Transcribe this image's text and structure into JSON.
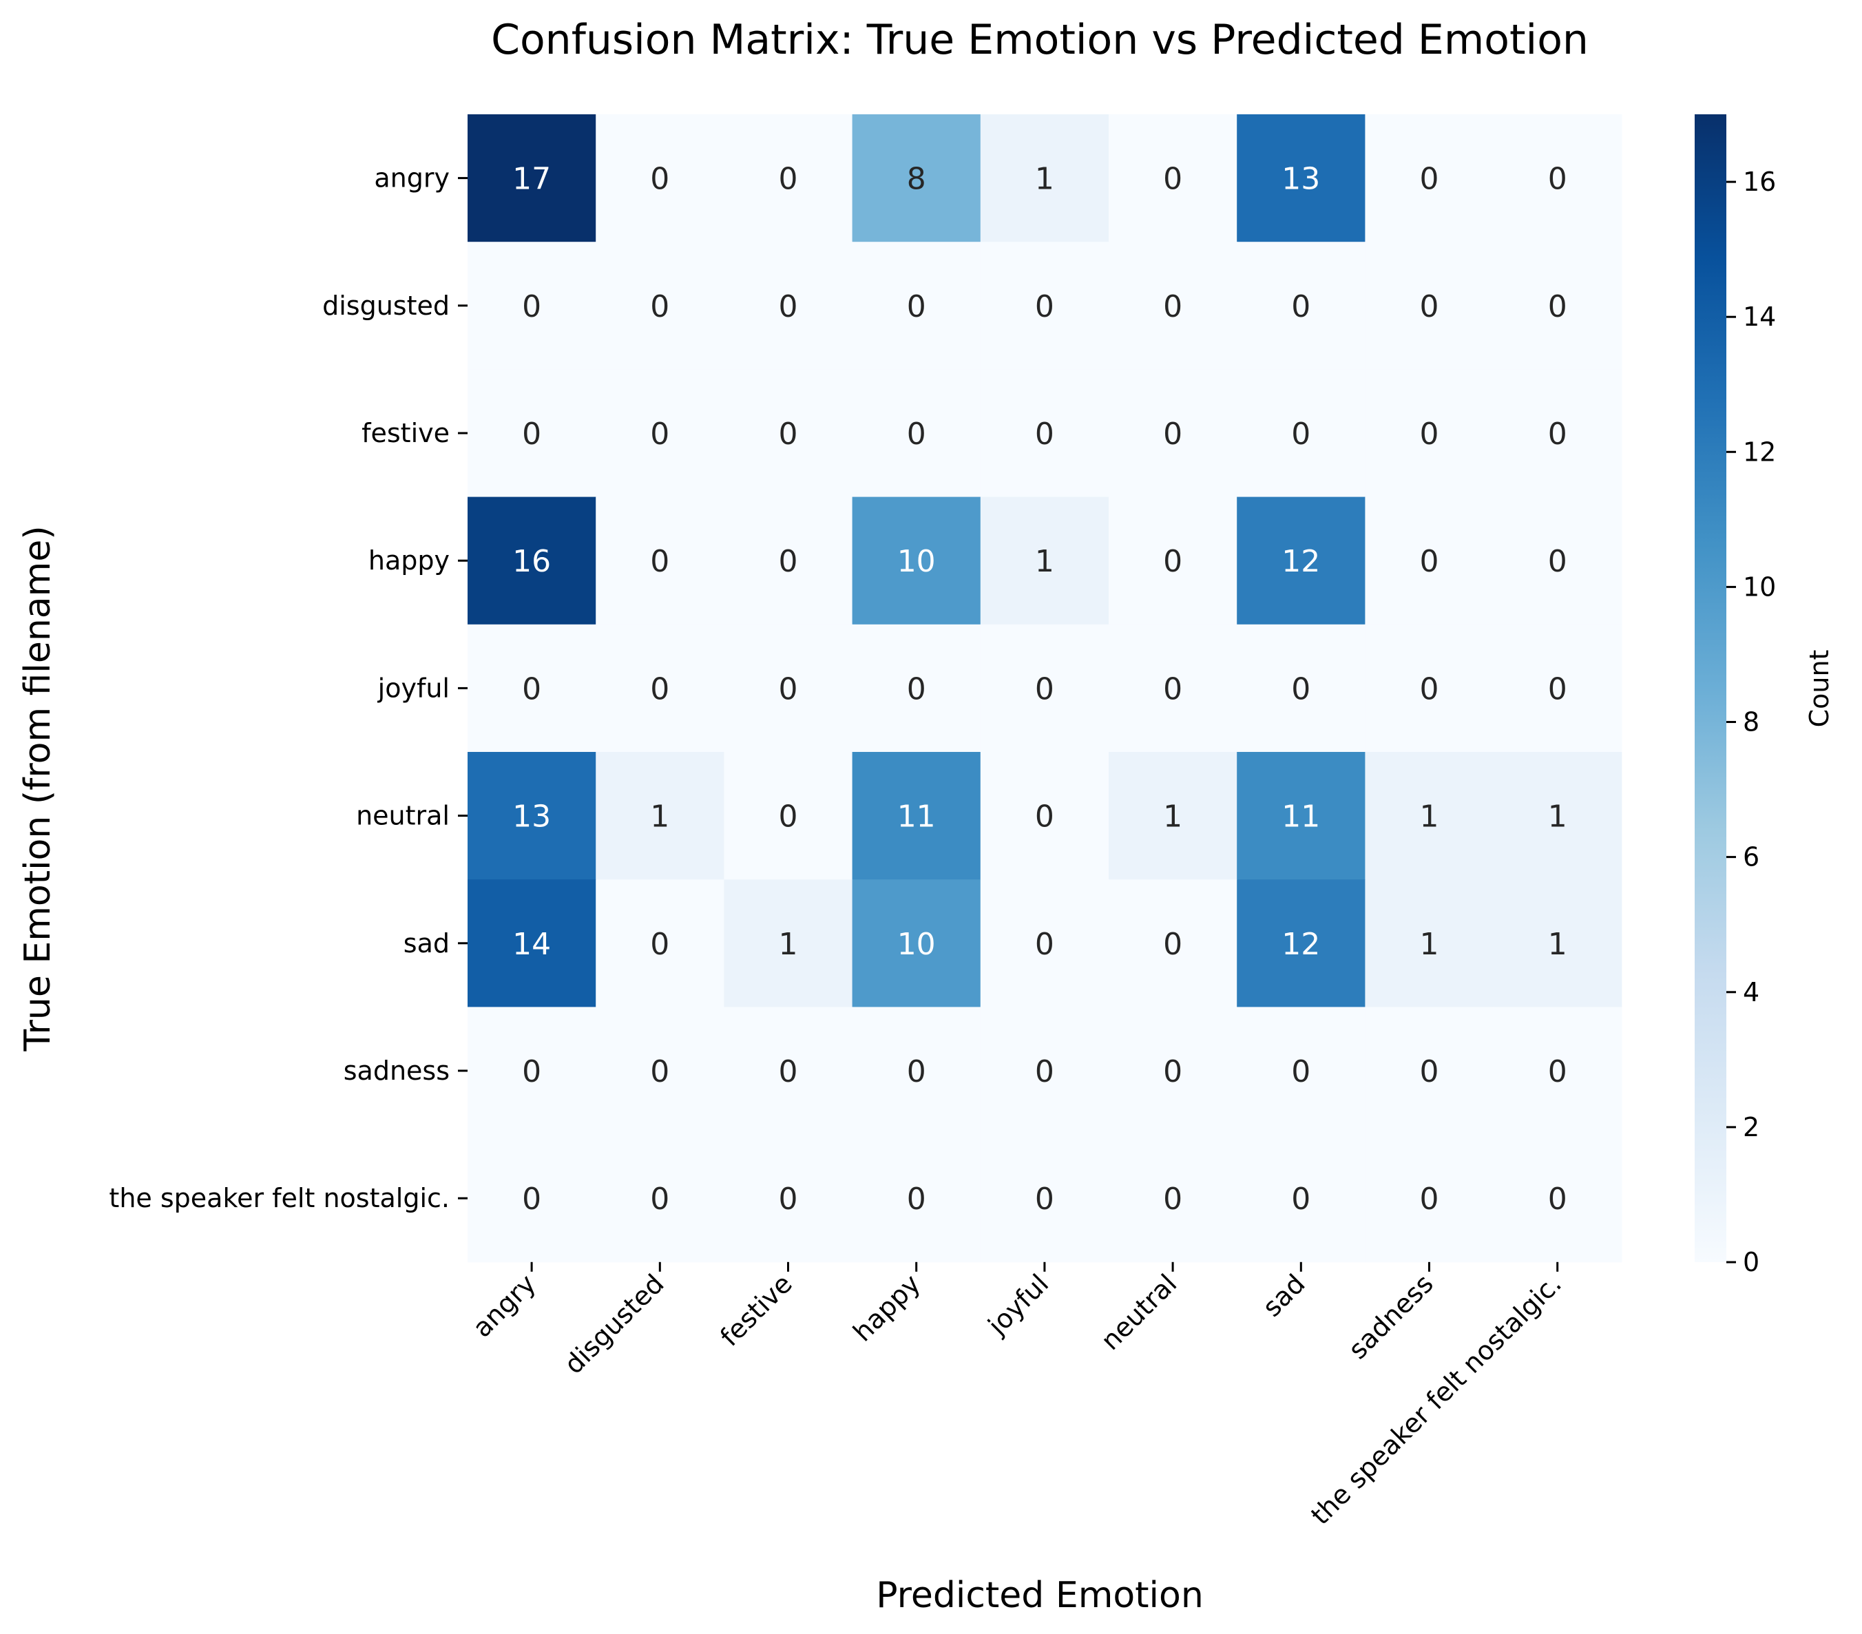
{
  "chart_data": {
    "type": "heatmap",
    "title": "Confusion Matrix: True Emotion vs Predicted Emotion",
    "xlabel": "Predicted Emotion",
    "ylabel": "True Emotion (from filename)",
    "x_categories": [
      "angry",
      "disgusted",
      "festive",
      "happy",
      "joyful",
      "neutral",
      "sad",
      "sadness",
      "the speaker felt nostalgic."
    ],
    "y_categories": [
      "angry",
      "disgusted",
      "festive",
      "happy",
      "joyful",
      "neutral",
      "sad",
      "sadness",
      "the speaker felt nostalgic."
    ],
    "values": [
      [
        17,
        0,
        0,
        8,
        1,
        0,
        13,
        0,
        0
      ],
      [
        0,
        0,
        0,
        0,
        0,
        0,
        0,
        0,
        0
      ],
      [
        0,
        0,
        0,
        0,
        0,
        0,
        0,
        0,
        0
      ],
      [
        16,
        0,
        0,
        10,
        1,
        0,
        12,
        0,
        0
      ],
      [
        0,
        0,
        0,
        0,
        0,
        0,
        0,
        0,
        0
      ],
      [
        13,
        1,
        0,
        11,
        0,
        1,
        11,
        1,
        1
      ],
      [
        14,
        0,
        1,
        10,
        0,
        0,
        12,
        1,
        1
      ],
      [
        0,
        0,
        0,
        0,
        0,
        0,
        0,
        0,
        0
      ],
      [
        0,
        0,
        0,
        0,
        0,
        0,
        0,
        0,
        0
      ]
    ],
    "colorbar": {
      "label": "Count",
      "range": [
        0,
        17
      ],
      "ticks": [
        0,
        2,
        4,
        6,
        8,
        10,
        12,
        14,
        16
      ]
    },
    "colormap": "Blues",
    "colors": {
      "low": "#f7fbff",
      "high": "#08306b",
      "text_dark": "#262626",
      "text_light": "#ffffff"
    },
    "grid": false
  }
}
